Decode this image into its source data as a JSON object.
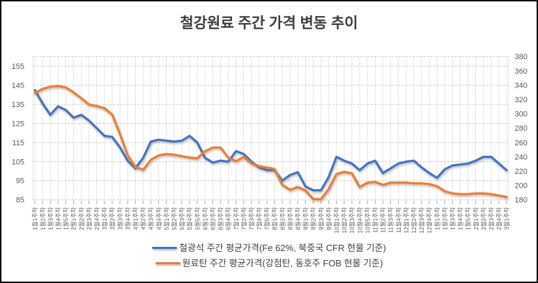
{
  "title": "철강원료 주간 가격 변동 추이",
  "chart_data": {
    "type": "line",
    "grid": true,
    "legend_position": "bottom",
    "x_labels": [
      "1월1주차",
      "1월2주차",
      "1월3주차",
      "1월4주차",
      "1월5주차",
      "2월1주차",
      "2월2주차",
      "2월3주차",
      "2월4주차",
      "3월1주차",
      "3월2주차",
      "3월3주차",
      "3월4주차",
      "4월1주차",
      "4월2주차",
      "4월3주차",
      "4월4주차",
      "5월1주차",
      "5월2주차",
      "5월3주차",
      "5월4주차",
      "5월5주차",
      "6월1주차",
      "6월2주차",
      "6월3주차",
      "6월4주차",
      "7월1주차",
      "7월2주차",
      "7월3주차",
      "7월4주차",
      "7월5주차",
      "8월1주차",
      "8월2주차",
      "8월3주차",
      "8월4주차",
      "9월1주차",
      "9월2주차",
      "9월3주차",
      "9월4주차",
      "10월1주차",
      "10월2주차",
      "10월3주차",
      "10월4주차",
      "10월5주차",
      "11월1주차",
      "11월2주차",
      "11월3주차",
      "11월4주차",
      "12월1주차",
      "12월2주차",
      "12월3주차",
      "12월4주차",
      "1월1주차",
      "1월2주차",
      "1월3주차",
      "1월4주차",
      "1월5주차",
      "2월1주차",
      "2월2주차",
      "2월3주차",
      "2월4주차",
      "3월1주차"
    ],
    "left_axis": {
      "min": 85,
      "max": 160,
      "ticks": [
        155,
        145,
        135,
        125,
        115,
        105,
        95,
        85
      ]
    },
    "right_axis": {
      "min": 180,
      "max": 380,
      "ticks": [
        380,
        360,
        340,
        320,
        300,
        280,
        260,
        240,
        220,
        200,
        180
      ]
    },
    "series": [
      {
        "name": "철광석 주간 평균가격(Fe 62%, 북중국 CFR 현물 기준)",
        "axis": "left",
        "color": "#4472C4",
        "values": [
          142.5,
          135.5,
          129.5,
          134,
          132,
          128,
          129.5,
          126.5,
          122.5,
          118.5,
          118,
          112.5,
          105.5,
          101.5,
          107,
          115.5,
          116.5,
          116,
          115.5,
          116,
          118.5,
          115,
          107,
          104.5,
          105.5,
          105,
          110.5,
          109,
          105,
          102,
          100.5,
          100.5,
          95,
          98,
          99.5,
          92,
          90,
          90,
          97,
          107.5,
          105.5,
          104,
          100.5,
          104,
          105.5,
          99,
          101.5,
          104,
          105,
          105.5,
          102,
          99,
          96.5,
          101,
          103,
          103.5,
          104,
          105.5,
          107.5,
          107.5,
          104,
          100.5
        ]
      },
      {
        "name": "원료탄 주간 평균가격(강점탄, 동호주 FOB 현물 기준)",
        "axis": "right",
        "color": "#ED7D31",
        "values": [
          329,
          335,
          338,
          339,
          337,
          330,
          322,
          313,
          311,
          308,
          299,
          272,
          242,
          226,
          222,
          236,
          242,
          244,
          243,
          241,
          239,
          238,
          248,
          253,
          253,
          239,
          234,
          240,
          231,
          227,
          225,
          223,
          201,
          194,
          198,
          193,
          181,
          181,
          195,
          216,
          219,
          217,
          198,
          204,
          205,
          201,
          204,
          204,
          204,
          203,
          203,
          202,
          199,
          192,
          189,
          188,
          188,
          189,
          189,
          188,
          186,
          184
        ]
      }
    ]
  }
}
